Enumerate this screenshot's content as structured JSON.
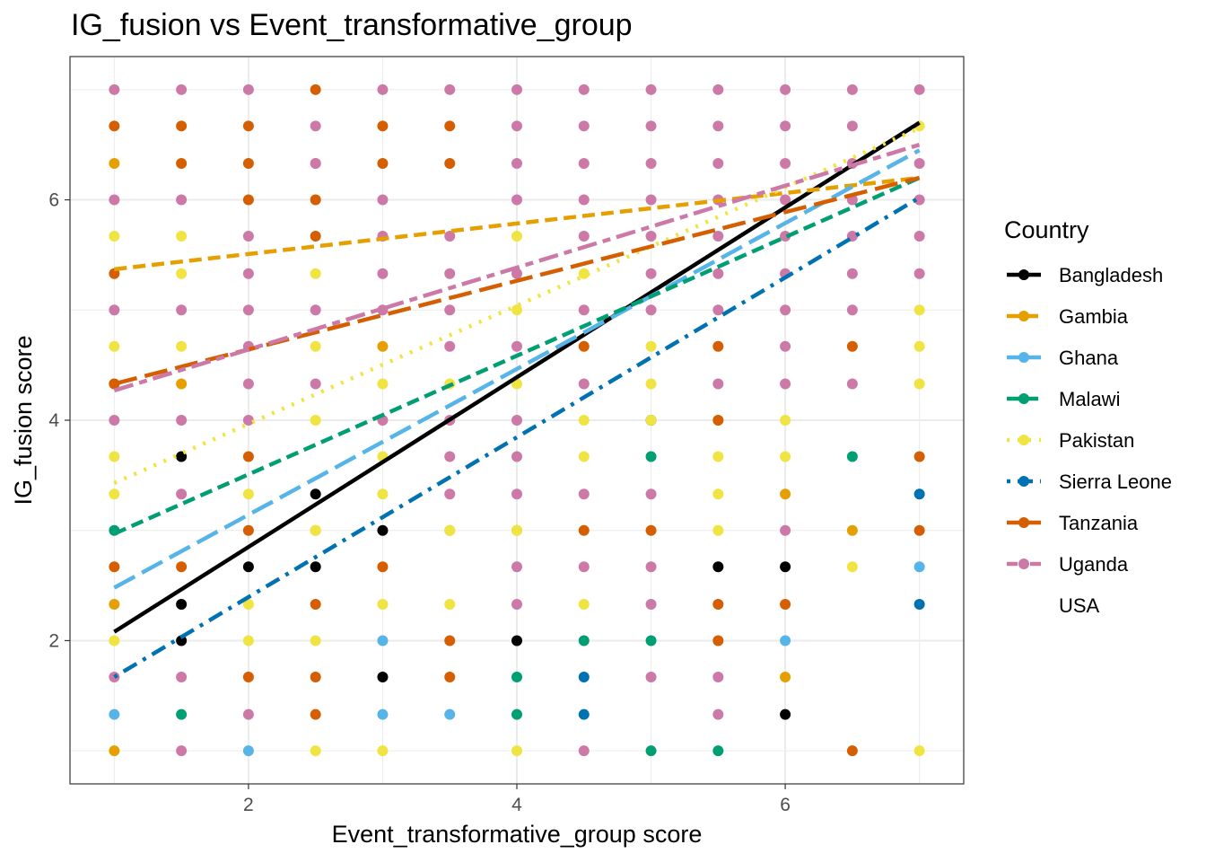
{
  "chart_data": {
    "type": "scatter",
    "title": "IG_fusion vs Event_transformative_group",
    "xlabel": "Event_transformative_group score",
    "ylabel": "IG_fusion score",
    "xlim": [
      0.67,
      7.33
    ],
    "ylim": [
      0.7,
      7.3
    ],
    "x_ticks": [
      2,
      4,
      6
    ],
    "y_ticks": [
      2,
      4,
      6
    ],
    "grid": true,
    "legend": {
      "title": "Country",
      "position": "right"
    },
    "series": [
      {
        "name": "Bangladesh",
        "color": "#000000",
        "linetype": "solid",
        "line": [
          [
            1,
            2.08
          ],
          [
            7,
            6.7
          ]
        ],
        "points": [
          [
            1.5,
            3.67
          ],
          [
            1.5,
            2.33
          ],
          [
            1.5,
            2.0
          ],
          [
            2,
            2.67
          ],
          [
            2.5,
            3.33
          ],
          [
            2.5,
            2.67
          ],
          [
            3,
            3.0
          ],
          [
            3,
            1.67
          ],
          [
            4,
            2.0
          ],
          [
            5,
            4.0
          ],
          [
            5.5,
            2.67
          ],
          [
            6,
            2.67
          ],
          [
            6,
            1.33
          ]
        ]
      },
      {
        "name": "Gambia",
        "color": "#E69F00",
        "linetype": "dashed",
        "line": [
          [
            1,
            5.37
          ],
          [
            7,
            6.2
          ]
        ],
        "points": [
          [
            1,
            6.33
          ],
          [
            1,
            4.33
          ],
          [
            1,
            2.33
          ],
          [
            1,
            1.0
          ],
          [
            1.5,
            4.33
          ],
          [
            2.5,
            6.33
          ],
          [
            2.5,
            3.0
          ],
          [
            3,
            4.67
          ],
          [
            3.5,
            3.0
          ],
          [
            4,
            3.0
          ],
          [
            6,
            3.33
          ],
          [
            6,
            1.67
          ],
          [
            6.5,
            3.0
          ]
        ]
      },
      {
        "name": "Ghana",
        "color": "#56B4E9",
        "linetype": "longdash",
        "line": [
          [
            1,
            2.48
          ],
          [
            7,
            6.45
          ]
        ],
        "points": [
          [
            1,
            1.33
          ],
          [
            2,
            1.0
          ],
          [
            3,
            1.33
          ],
          [
            3,
            2.0
          ],
          [
            3.5,
            1.33
          ],
          [
            6,
            2.0
          ],
          [
            7,
            2.67
          ]
        ]
      },
      {
        "name": "Malawi",
        "color": "#009E73",
        "linetype": "dashed",
        "line": [
          [
            1,
            2.97
          ],
          [
            7,
            6.2
          ]
        ],
        "points": [
          [
            1,
            3.0
          ],
          [
            1.5,
            1.33
          ],
          [
            4,
            1.67
          ],
          [
            4,
            1.33
          ],
          [
            4.5,
            2.0
          ],
          [
            5,
            3.67
          ],
          [
            5,
            2.0
          ],
          [
            5,
            1.0
          ],
          [
            5.5,
            1.0
          ],
          [
            6.5,
            3.67
          ]
        ]
      },
      {
        "name": "Pakistan",
        "color": "#F0E442",
        "linetype": "dotted",
        "line": [
          [
            1,
            3.43
          ],
          [
            7,
            6.65
          ]
        ],
        "points": [
          [
            1,
            5.67
          ],
          [
            1,
            4.67
          ],
          [
            1,
            3.67
          ],
          [
            1,
            3.33
          ],
          [
            1,
            2.0
          ],
          [
            1.5,
            5.67
          ],
          [
            1.5,
            5.33
          ],
          [
            1.5,
            4.67
          ],
          [
            2,
            3.33
          ],
          [
            2,
            2.33
          ],
          [
            2,
            2.0
          ],
          [
            2.5,
            5.33
          ],
          [
            2.5,
            4.67
          ],
          [
            2.5,
            4.0
          ],
          [
            2.5,
            3.0
          ],
          [
            2.5,
            2.0
          ],
          [
            2.5,
            1.0
          ],
          [
            3,
            4.33
          ],
          [
            3,
            3.67
          ],
          [
            3,
            3.33
          ],
          [
            3,
            2.33
          ],
          [
            3,
            1.0
          ],
          [
            3.5,
            4.33
          ],
          [
            3.5,
            3.0
          ],
          [
            3.5,
            2.33
          ],
          [
            4,
            5.67
          ],
          [
            4,
            5.0
          ],
          [
            4,
            4.33
          ],
          [
            4,
            3.0
          ],
          [
            4,
            1.0
          ],
          [
            4.5,
            5.33
          ],
          [
            4.5,
            4.0
          ],
          [
            4.5,
            3.67
          ],
          [
            4.5,
            2.33
          ],
          [
            5,
            4.67
          ],
          [
            5,
            4.33
          ],
          [
            5,
            4.0
          ],
          [
            5.5,
            4.0
          ],
          [
            5.5,
            3.67
          ],
          [
            5.5,
            3.33
          ],
          [
            5.5,
            3.0
          ],
          [
            6,
            4.0
          ],
          [
            6,
            3.67
          ],
          [
            6.5,
            2.67
          ],
          [
            7,
            6.67
          ],
          [
            7,
            5.0
          ],
          [
            7,
            4.67
          ],
          [
            7,
            4.33
          ],
          [
            7,
            1.0
          ]
        ]
      },
      {
        "name": "Sierra Leone",
        "color": "#0072B2",
        "linetype": "dotdash",
        "line": [
          [
            1,
            1.67
          ],
          [
            7,
            6.02
          ]
        ],
        "points": [
          [
            4.5,
            1.67
          ],
          [
            4.5,
            1.33
          ],
          [
            7,
            3.33
          ],
          [
            7,
            2.33
          ]
        ]
      },
      {
        "name": "Tanzania",
        "color": "#D55E00",
        "linetype": "longdash",
        "line": [
          [
            1,
            4.33
          ],
          [
            7,
            6.2
          ]
        ],
        "points": [
          [
            1,
            6.67
          ],
          [
            1,
            5.33
          ],
          [
            1,
            4.33
          ],
          [
            1,
            2.67
          ],
          [
            1.5,
            6.67
          ],
          [
            1.5,
            6.33
          ],
          [
            1.5,
            2.67
          ],
          [
            2,
            6.67
          ],
          [
            2,
            6.33
          ],
          [
            2,
            6.0
          ],
          [
            2,
            3.67
          ],
          [
            2,
            3.0
          ],
          [
            2,
            1.67
          ],
          [
            2.5,
            7.0
          ],
          [
            2.5,
            6.0
          ],
          [
            2.5,
            5.67
          ],
          [
            2.5,
            2.33
          ],
          [
            2.5,
            1.67
          ],
          [
            2.5,
            1.33
          ],
          [
            3,
            6.67
          ],
          [
            3,
            6.33
          ],
          [
            3,
            2.67
          ],
          [
            3.5,
            6.67
          ],
          [
            3.5,
            6.33
          ],
          [
            3.5,
            2.0
          ],
          [
            3.5,
            1.67
          ],
          [
            4.5,
            4.67
          ],
          [
            4.5,
            3.0
          ],
          [
            5,
            3.0
          ],
          [
            5.5,
            4.67
          ],
          [
            5.5,
            4.0
          ],
          [
            5.5,
            2.33
          ],
          [
            5.5,
            2.0
          ],
          [
            6,
            2.33
          ],
          [
            6.5,
            4.67
          ],
          [
            6.5,
            1.0
          ],
          [
            7,
            3.67
          ],
          [
            7,
            3.0
          ]
        ]
      },
      {
        "name": "Uganda",
        "color": "#CC79A7",
        "linetype": "twodash",
        "line": [
          [
            1,
            4.27
          ],
          [
            7,
            6.5
          ]
        ],
        "points": [
          [
            1,
            7.0
          ],
          [
            1,
            6.0
          ],
          [
            1,
            5.0
          ],
          [
            1,
            4.0
          ],
          [
            1,
            1.67
          ],
          [
            1.5,
            7.0
          ],
          [
            1.5,
            6.0
          ],
          [
            1.5,
            5.0
          ],
          [
            1.5,
            4.0
          ],
          [
            1.5,
            3.33
          ],
          [
            1.5,
            1.67
          ],
          [
            1.5,
            1.0
          ],
          [
            2,
            7.0
          ],
          [
            2,
            5.67
          ],
          [
            2,
            5.33
          ],
          [
            2,
            5.0
          ],
          [
            2,
            4.67
          ],
          [
            2,
            4.33
          ],
          [
            2,
            4.0
          ],
          [
            2,
            1.33
          ],
          [
            2.5,
            6.67
          ],
          [
            2.5,
            6.33
          ],
          [
            2.5,
            5.0
          ],
          [
            2.5,
            4.33
          ],
          [
            3,
            7.0
          ],
          [
            3,
            6.0
          ],
          [
            3,
            5.67
          ],
          [
            3,
            5.33
          ],
          [
            3,
            5.0
          ],
          [
            3,
            4.0
          ],
          [
            3.5,
            7.0
          ],
          [
            3.5,
            5.67
          ],
          [
            3.5,
            5.33
          ],
          [
            3.5,
            5.0
          ],
          [
            3.5,
            4.67
          ],
          [
            3.5,
            4.0
          ],
          [
            3.5,
            3.67
          ],
          [
            3.5,
            3.33
          ],
          [
            4,
            7.0
          ],
          [
            4,
            6.67
          ],
          [
            4,
            6.33
          ],
          [
            4,
            6.0
          ],
          [
            4,
            5.33
          ],
          [
            4,
            4.67
          ],
          [
            4,
            4.0
          ],
          [
            4,
            3.67
          ],
          [
            4,
            3.33
          ],
          [
            4,
            2.67
          ],
          [
            4,
            2.33
          ],
          [
            4.5,
            7.0
          ],
          [
            4.5,
            6.67
          ],
          [
            4.5,
            6.33
          ],
          [
            4.5,
            6.0
          ],
          [
            4.5,
            5.67
          ],
          [
            4.5,
            5.0
          ],
          [
            4.5,
            4.33
          ],
          [
            4.5,
            3.33
          ],
          [
            4.5,
            2.67
          ],
          [
            4.5,
            1.0
          ],
          [
            5,
            7.0
          ],
          [
            5,
            6.67
          ],
          [
            5,
            6.33
          ],
          [
            5,
            6.0
          ],
          [
            5,
            5.67
          ],
          [
            5,
            5.33
          ],
          [
            5,
            5.0
          ],
          [
            5,
            3.33
          ],
          [
            5,
            2.67
          ],
          [
            5,
            2.33
          ],
          [
            5,
            1.67
          ],
          [
            5.5,
            7.0
          ],
          [
            5.5,
            6.67
          ],
          [
            5.5,
            6.33
          ],
          [
            5.5,
            6.0
          ],
          [
            5.5,
            5.67
          ],
          [
            5.5,
            5.33
          ],
          [
            5.5,
            5.0
          ],
          [
            5.5,
            4.33
          ],
          [
            5.5,
            1.67
          ],
          [
            5.5,
            1.33
          ],
          [
            6,
            7.0
          ],
          [
            6,
            6.67
          ],
          [
            6,
            6.33
          ],
          [
            6,
            6.0
          ],
          [
            6,
            5.67
          ],
          [
            6,
            5.33
          ],
          [
            6,
            5.0
          ],
          [
            6,
            4.67
          ],
          [
            6,
            4.33
          ],
          [
            6,
            3.0
          ],
          [
            6.5,
            7.0
          ],
          [
            6.5,
            6.67
          ],
          [
            6.5,
            6.33
          ],
          [
            6.5,
            6.0
          ],
          [
            6.5,
            5.67
          ],
          [
            6.5,
            5.33
          ],
          [
            6.5,
            5.0
          ],
          [
            6.5,
            4.33
          ],
          [
            7,
            7.0
          ],
          [
            7,
            6.33
          ],
          [
            7,
            6.0
          ],
          [
            7,
            5.67
          ],
          [
            7,
            5.33
          ]
        ]
      },
      {
        "name": "USA",
        "color": "#999999",
        "linetype": "none",
        "line": null,
        "points": []
      }
    ]
  }
}
